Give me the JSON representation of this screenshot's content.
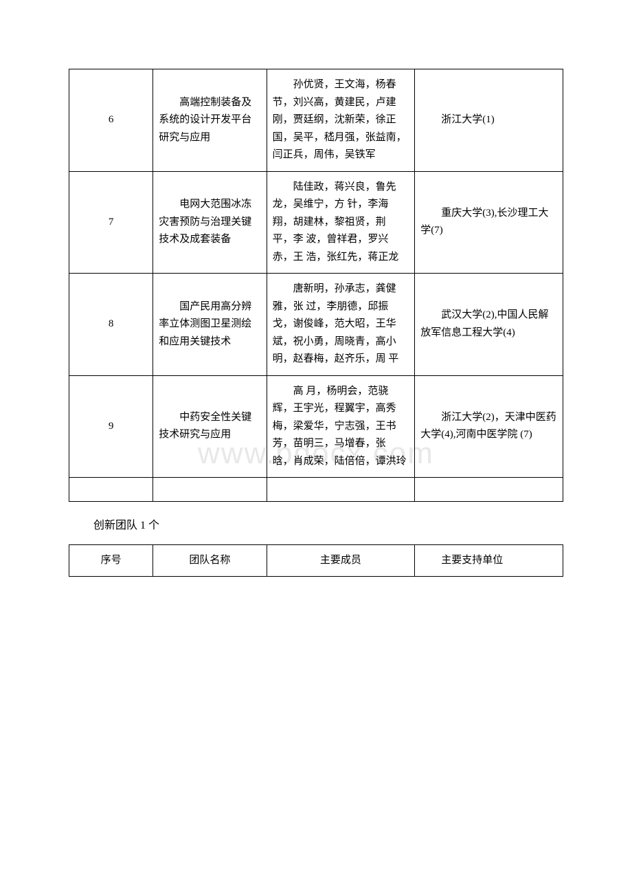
{
  "watermark": "www.bdocx.com",
  "main_table": {
    "rows": [
      {
        "num": "6",
        "name": "高端控制装备及系统的设计开发平台研究与应用",
        "members": "孙优贤，王文海，杨春节，刘兴高，黄建民，卢建刚，贾廷纲，沈新荣，徐正国，吴平，嵇月强，张益南，闫正兵，周伟，吴铁军",
        "unit": "浙江大学(1)"
      },
      {
        "num": "7",
        "name": "电网大范围冰冻灾害预防与治理关键技术及成套装备",
        "members": "陆佳政，蒋兴良，鲁先龙，吴维宁，方 针，李海翔，胡建林，黎祖贤，荆 平，李 波，曾祥君，罗兴赤，王 浩，张红先，蒋正龙",
        "unit": "重庆大学(3),长沙理工大学(7)"
      },
      {
        "num": "8",
        "name": "国产民用高分辨率立体测图卫星测绘和应用关键技术",
        "members": "唐新明，孙承志，龚健雅，张 过，李朋德，邱振戈，谢俊峰，范大昭，王华斌，祝小勇，周晓青，高小明，赵春梅，赵齐乐，周 平",
        "unit": "武汉大学(2),中国人民解放军信息工程大学(4)"
      },
      {
        "num": "9",
        "name": "中药安全性关键技术研究与应用",
        "members": "高 月，杨明会，范骁辉，王宇光，程翼宇，高秀梅，梁爱华，宁志强，王书芳，苗明三，马增春，张 晗，肖成荣，陆倍倍，谭洪玲",
        "unit": "浙江大学(2)，天津中医药大学(4),河南中医学院 (7)"
      }
    ]
  },
  "section_title": "创新团队 1 个",
  "team_table": {
    "headers": {
      "num": "序号",
      "name": "团队名称",
      "members": "主要成员",
      "unit": "主要支持单位"
    }
  },
  "style": {
    "background_color": "#ffffff",
    "border_color": "#000000",
    "text_color": "#000000",
    "watermark_color": "#e8e8e8",
    "font_size": 15,
    "header_font_size": 16
  }
}
